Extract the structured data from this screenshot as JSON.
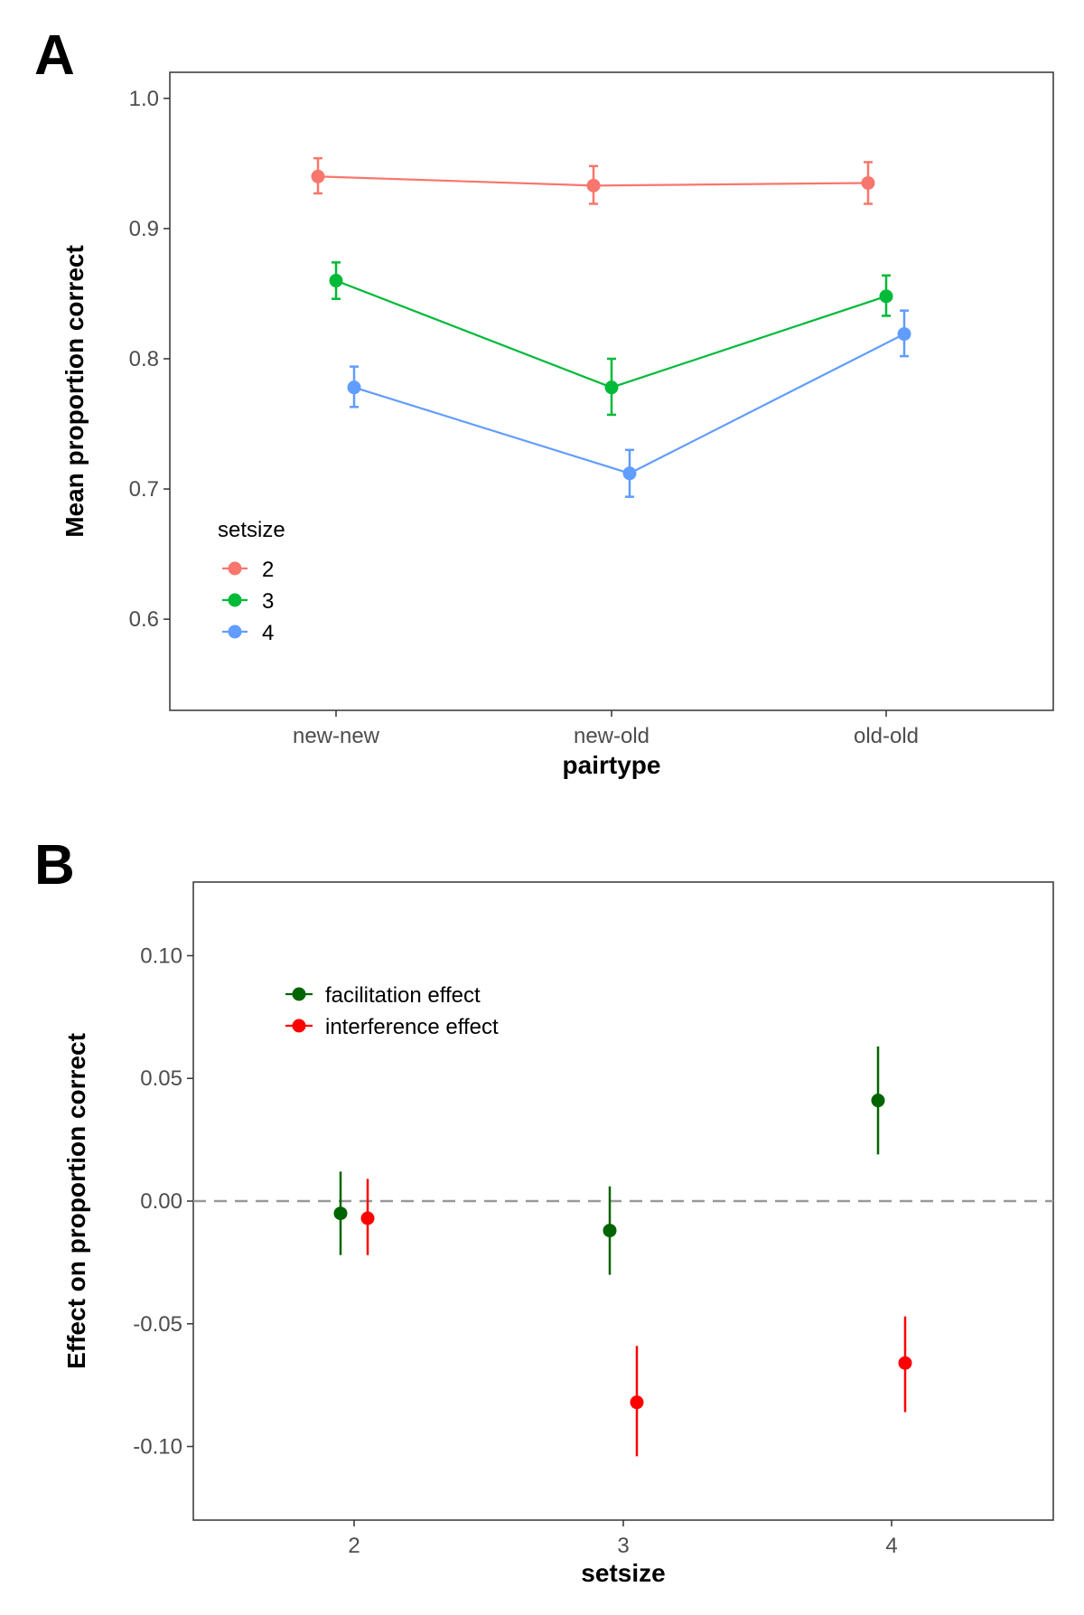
{
  "chart_data": [
    {
      "panel_label": "A",
      "type": "line",
      "xlabel": "pairtype",
      "ylabel": "Mean proportion correct",
      "categories": [
        "new-new",
        "new-old",
        "old-old"
      ],
      "ylim": [
        0.53,
        1.02
      ],
      "yticks": [
        0.6,
        0.7,
        0.8,
        0.9,
        1.0
      ],
      "ytick_labels": [
        "0.6",
        "0.7",
        "0.8",
        "0.9",
        "1.0"
      ],
      "grid": false,
      "error_bars": true,
      "legend": {
        "title": "setsize",
        "position": "bottom-left"
      },
      "series": [
        {
          "name": "2",
          "color": "#f8766d",
          "values": [
            0.94,
            0.933,
            0.935
          ],
          "lower": [
            0.927,
            0.919,
            0.919
          ],
          "upper": [
            0.954,
            0.948,
            0.951
          ]
        },
        {
          "name": "3",
          "color": "#00ba38",
          "values": [
            0.86,
            0.778,
            0.848
          ],
          "lower": [
            0.846,
            0.757,
            0.833
          ],
          "upper": [
            0.874,
            0.8,
            0.864
          ]
        },
        {
          "name": "4",
          "color": "#619cff",
          "values": [
            0.778,
            0.712,
            0.819
          ],
          "lower": [
            0.763,
            0.694,
            0.802
          ],
          "upper": [
            0.794,
            0.73,
            0.837
          ]
        }
      ]
    },
    {
      "panel_label": "B",
      "type": "scatter",
      "xlabel": "setsize",
      "ylabel": "Effect on proportion correct",
      "categories": [
        "2",
        "3",
        "4"
      ],
      "ylim": [
        -0.13,
        0.13
      ],
      "yticks": [
        -0.1,
        -0.05,
        0.0,
        0.05,
        0.1
      ],
      "ytick_labels": [
        "-0.10",
        "-0.05",
        "0.00",
        "0.05",
        "0.10"
      ],
      "reference_line": 0.0,
      "grid": false,
      "error_bars": true,
      "legend": {
        "position": "top-left"
      },
      "series": [
        {
          "name": "facilitation effect",
          "color": "#006400",
          "values": [
            -0.005,
            -0.012,
            0.041
          ],
          "lower": [
            -0.022,
            -0.03,
            0.019
          ],
          "upper": [
            0.012,
            0.006,
            0.063
          ]
        },
        {
          "name": "interference effect",
          "color": "#ff0000",
          "values": [
            -0.007,
            -0.082,
            -0.066
          ],
          "lower": [
            -0.022,
            -0.104,
            -0.086
          ],
          "upper": [
            0.009,
            -0.059,
            -0.047
          ]
        }
      ]
    }
  ]
}
